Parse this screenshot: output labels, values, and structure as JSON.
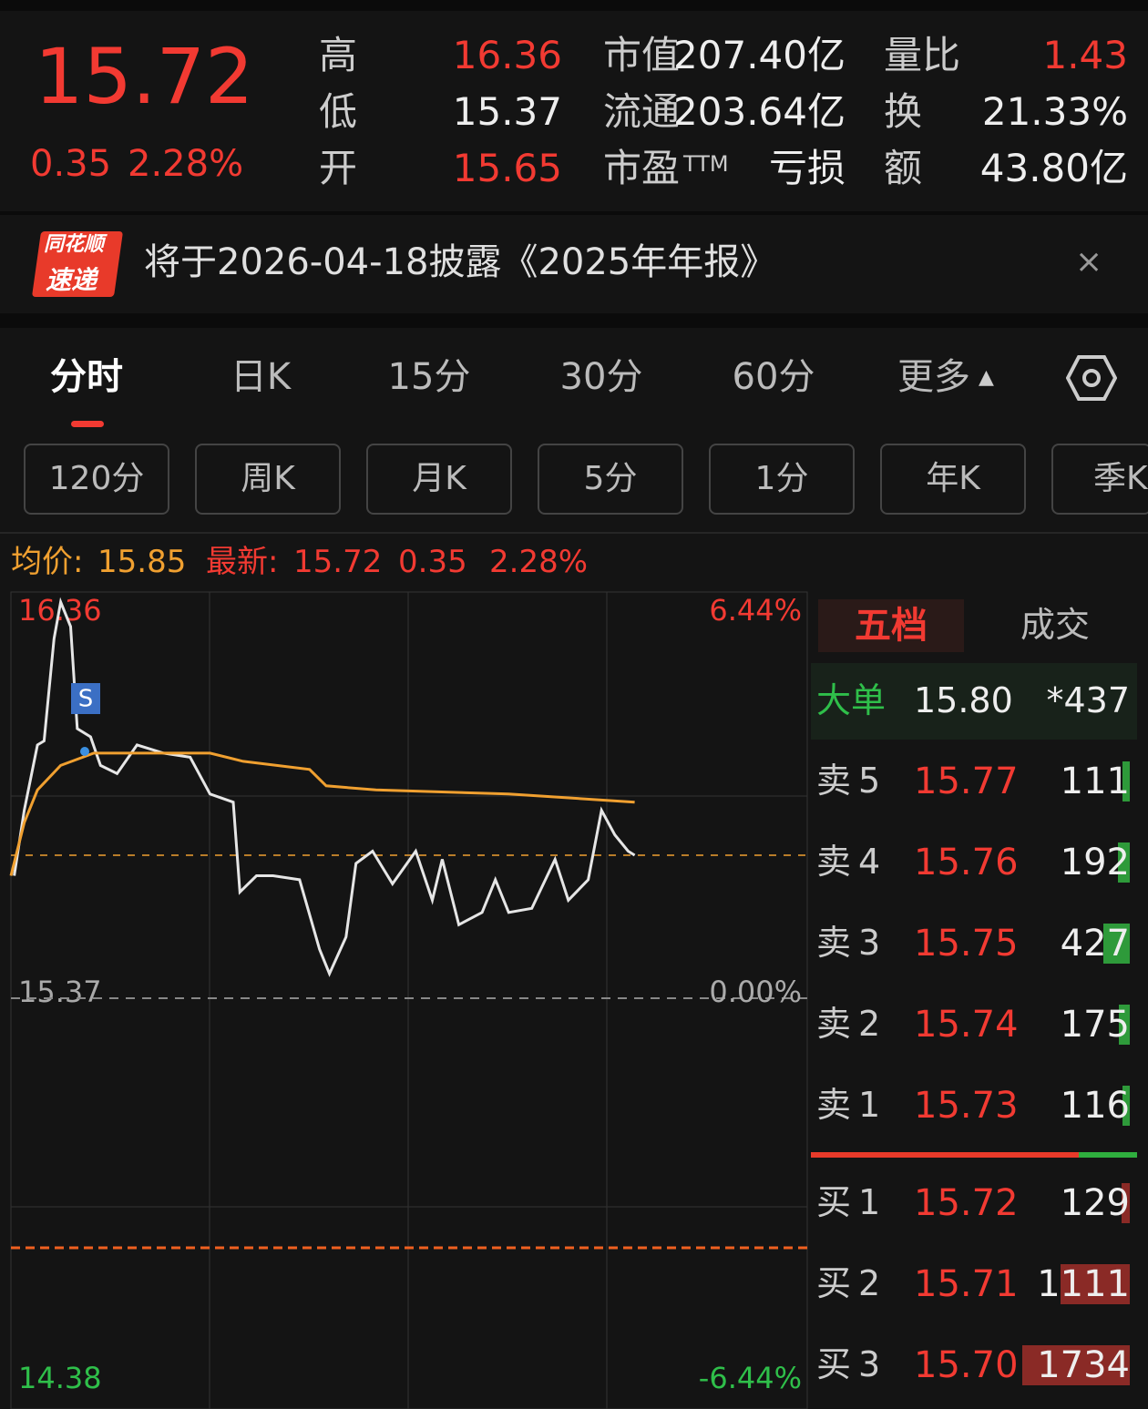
{
  "header": {
    "price": "15.72",
    "change": "0.35",
    "change_pct": "2.28%",
    "stats": [
      [
        "高",
        "16.36",
        "市值",
        "207.40亿",
        "量比",
        "1.43"
      ],
      [
        "低",
        "15.37",
        "流通",
        "203.64亿",
        "换",
        "21.33%"
      ],
      [
        "开",
        "15.65",
        "市盈",
        "亏损",
        "额",
        "43.80亿"
      ]
    ],
    "pe_suffix": "TTM"
  },
  "banner": {
    "logo_top": "同花顺",
    "logo_bottom": "速递",
    "text": "将于2026-04-18披露《2025年年报》"
  },
  "tabs": [
    "分时",
    "日K",
    "15分",
    "30分",
    "60分",
    "更多"
  ],
  "sub_tabs": [
    "120分",
    "周K",
    "月K",
    "5分",
    "1分",
    "年K",
    "季K"
  ],
  "info": {
    "avg_label": "均价:",
    "avg": "15.85",
    "last_label": "最新:",
    "last": "15.72",
    "change": "0.35",
    "pct": "2.28%"
  },
  "chart_data": {
    "type": "line",
    "xlim": [
      0,
      240
    ],
    "ylim": [
      14.38,
      16.36
    ],
    "yticks": [
      16.36,
      15.37,
      14.38
    ],
    "y2lim": [
      -6.44,
      6.44
    ],
    "y2ticks": [
      {
        "value": 6.44,
        "label": "6.44%"
      },
      {
        "value": 0,
        "label": "0.00%"
      },
      {
        "value": -6.44,
        "label": "-6.44%"
      }
    ],
    "marker": "S",
    "series": [
      {
        "color": "#e6e6e6",
        "x": [
          1,
          4,
          8,
          10,
          13,
          15,
          18,
          20,
          24,
          27,
          32,
          38,
          46,
          54,
          60,
          67,
          69,
          74,
          79,
          87,
          93,
          96,
          101,
          104,
          109,
          115,
          122,
          127,
          130,
          135,
          142,
          146,
          150,
          157,
          164,
          168,
          174,
          178,
          182,
          186,
          188
        ],
        "values": [
          15.67,
          15.83,
          15.99,
          16.0,
          16.25,
          16.34,
          16.28,
          16.03,
          16.01,
          15.94,
          15.92,
          15.99,
          15.97,
          15.96,
          15.87,
          15.85,
          15.63,
          15.67,
          15.67,
          15.66,
          15.49,
          15.43,
          15.52,
          15.7,
          15.73,
          15.65,
          15.73,
          15.61,
          15.71,
          15.55,
          15.58,
          15.66,
          15.58,
          15.59,
          15.71,
          15.61,
          15.66,
          15.83,
          15.77,
          15.73,
          15.72
        ]
      },
      {
        "color": "#f0a030",
        "x": [
          0,
          4,
          8,
          15,
          25,
          60,
          70,
          90,
          95,
          110,
          150,
          188
        ],
        "values": [
          15.67,
          15.8,
          15.88,
          15.94,
          15.97,
          15.97,
          15.95,
          15.93,
          15.89,
          15.88,
          15.87,
          15.85
        ]
      }
    ]
  },
  "order_book": {
    "tabs": [
      "五档",
      "成交"
    ],
    "big_order": {
      "label": "大单",
      "price": "15.80",
      "volume": "*437"
    },
    "asks": [
      {
        "label": "卖5",
        "price": "15.77",
        "volume": 111
      },
      {
        "label": "卖4",
        "price": "15.76",
        "volume": 192
      },
      {
        "label": "卖3",
        "price": "15.75",
        "volume": 427
      },
      {
        "label": "卖2",
        "price": "15.74",
        "volume": 175
      },
      {
        "label": "卖1",
        "price": "15.73",
        "volume": 116
      }
    ],
    "bids": [
      {
        "label": "买1",
        "price": "15.72",
        "volume": 129
      },
      {
        "label": "买2",
        "price": "15.71",
        "volume": 1111
      },
      {
        "label": "买3",
        "price": "15.70",
        "volume": 1734
      }
    ]
  }
}
